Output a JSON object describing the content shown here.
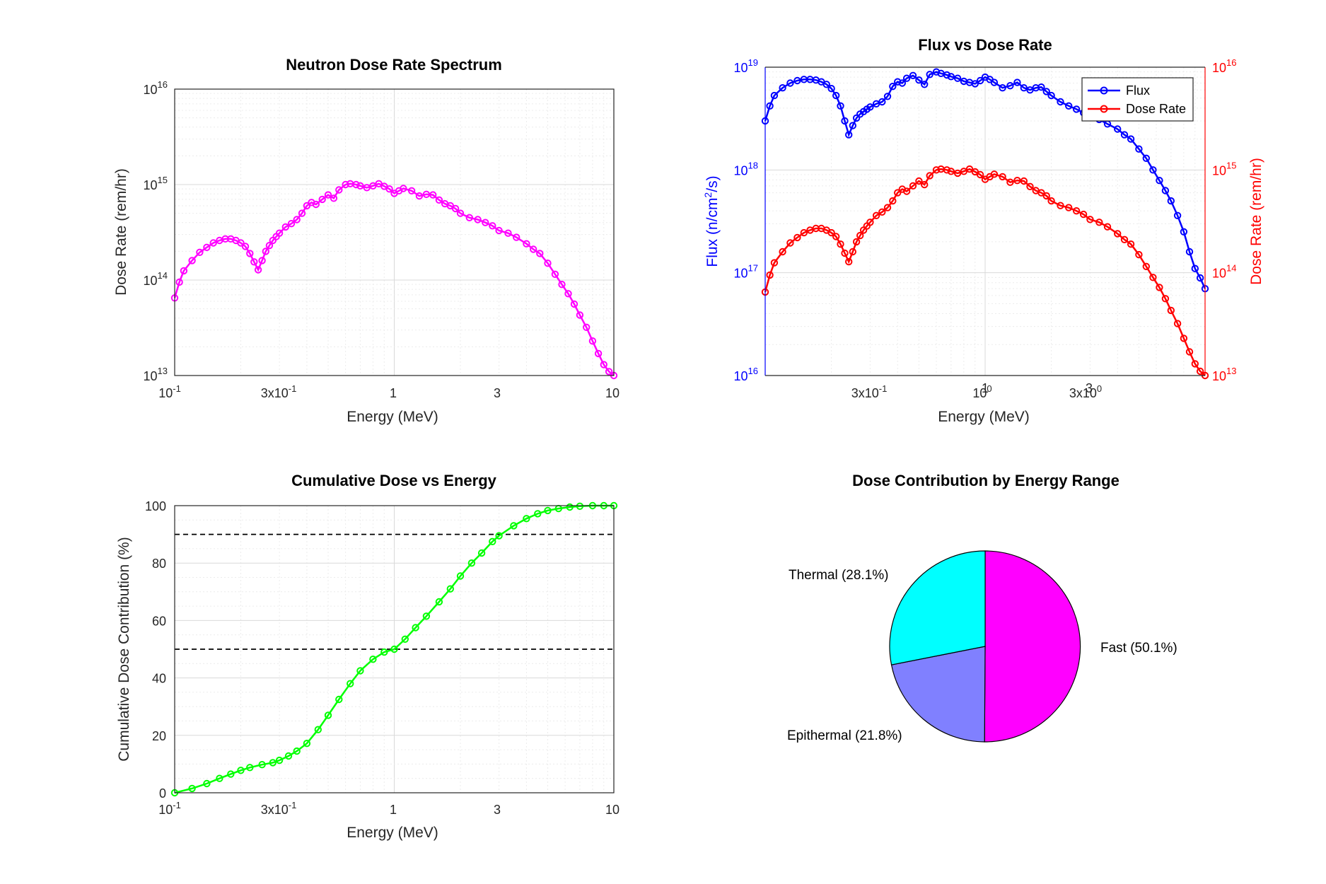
{
  "figure": {
    "background": "#ffffff"
  },
  "chart_data": [
    {
      "id": "dose",
      "type": "line",
      "title": "Neutron Dose Rate Spectrum",
      "xlabel": "Energy (MeV)",
      "ylabel": "Dose Rate (rem/hr)",
      "xscale": "log",
      "yscale": "log",
      "xlim": [
        0.1,
        10
      ],
      "ylim": [
        10000000000000.0,
        1e+16
      ],
      "grid": true,
      "minor_grid": true,
      "xtick_labels": [
        "10",
        "-1",
        "3x10",
        "-1",
        "1",
        "3",
        "10"
      ],
      "ytick_labels": [
        {
          "base": "10",
          "exp": "13"
        },
        {
          "base": "10",
          "exp": "14"
        },
        {
          "base": "10",
          "exp": "15"
        },
        {
          "base": "10",
          "exp": "16"
        }
      ],
      "series": [
        {
          "color": "#ff00ff",
          "marker": "circle",
          "x": [
            0.1,
            0.105,
            0.11,
            0.12,
            0.13,
            0.14,
            0.15,
            0.16,
            0.17,
            0.18,
            0.19,
            0.2,
            0.21,
            0.22,
            0.23,
            0.24,
            0.25,
            0.26,
            0.27,
            0.28,
            0.29,
            0.3,
            0.32,
            0.34,
            0.36,
            0.38,
            0.4,
            0.42,
            0.44,
            0.47,
            0.5,
            0.53,
            0.56,
            0.6,
            0.63,
            0.67,
            0.7,
            0.75,
            0.8,
            0.85,
            0.9,
            0.95,
            1.0,
            1.05,
            1.1,
            1.2,
            1.3,
            1.4,
            1.5,
            1.6,
            1.7,
            1.8,
            1.9,
            2.0,
            2.2,
            2.4,
            2.6,
            2.8,
            3.0,
            3.3,
            3.6,
            4.0,
            4.3,
            4.6,
            5.0,
            5.4,
            5.8,
            6.2,
            6.6,
            7.0,
            7.5,
            8.0,
            8.5,
            9.0,
            9.5,
            10
          ],
          "y": [
            65000000000000.0,
            95000000000000.0,
            125000000000000.0,
            160000000000000.0,
            195000000000000.0,
            220000000000000.0,
            245000000000000.0,
            260000000000000.0,
            270000000000000.0,
            270000000000000.0,
            260000000000000.0,
            245000000000000.0,
            225000000000000.0,
            190000000000000.0,
            155000000000000.0,
            128000000000000.0,
            160000000000000.0,
            200000000000000.0,
            230000000000000.0,
            260000000000000.0,
            285000000000000.0,
            310000000000000.0,
            360000000000000.0,
            390000000000000.0,
            430000000000000.0,
            500000000000000.0,
            600000000000000.0,
            650000000000000.0,
            620000000000000.0,
            700000000000000.0,
            780000000000000.0,
            720000000000000.0,
            880000000000000.0,
            1000000000000000.0,
            1020000000000000.0,
            1000000000000000.0,
            970000000000000.0,
            930000000000000.0,
            970000000000000.0,
            1020000000000000.0,
            960000000000000.0,
            900000000000000.0,
            810000000000000.0,
            860000000000000.0,
            910000000000000.0,
            860000000000000.0,
            760000000000000.0,
            790000000000000.0,
            780000000000000.0,
            690000000000000.0,
            630000000000000.0,
            600000000000000.0,
            560000000000000.0,
            500000000000000.0,
            450000000000000.0,
            430000000000000.0,
            400000000000000.0,
            370000000000000.0,
            330000000000000.0,
            310000000000000.0,
            280000000000000.0,
            240000000000000.0,
            210000000000000.0,
            190000000000000.0,
            150000000000000.0,
            115000000000000.0,
            90000000000000.0,
            72000000000000.0,
            56000000000000.0,
            43000000000000.0,
            32000000000000.0,
            23000000000000.0,
            17000000000000.0,
            13000000000000.0,
            11000000000000.0,
            10000000000000.0
          ]
        }
      ]
    },
    {
      "id": "flux",
      "type": "line",
      "title": "Flux vs Dose Rate",
      "xlabel": "Energy (MeV)",
      "xscale": "log",
      "xlim": [
        0.1,
        10
      ],
      "grid": true,
      "minor_grid": true,
      "xtick_labels": [
        "3x10",
        "-1",
        "10",
        "0",
        "1",
        "3x10",
        "0",
        "3"
      ],
      "left_axis": {
        "label": "Flux (n/cm",
        "label_sup": "2",
        "label_end": "/s)",
        "color": "#0000ff",
        "scale": "log",
        "lim": [
          1e+16,
          1e+19
        ],
        "tick_labels": [
          {
            "base": "10",
            "exp": "16"
          },
          {
            "base": "10",
            "exp": "17"
          },
          {
            "base": "10",
            "exp": "18"
          },
          {
            "base": "10",
            "exp": "19"
          }
        ]
      },
      "right_axis": {
        "label": "Dose Rate (rem/hr)",
        "color": "#ff0000",
        "scale": "log",
        "lim": [
          10000000000000.0,
          1e+16
        ],
        "tick_labels": [
          {
            "base": "10",
            "exp": "13"
          },
          {
            "base": "10",
            "exp": "14"
          },
          {
            "base": "10",
            "exp": "15"
          },
          {
            "base": "10",
            "exp": "16"
          }
        ]
      },
      "legend": {
        "placement": "top-right",
        "entries": [
          "Flux",
          "Dose Rate"
        ]
      },
      "series": [
        {
          "name": "Flux",
          "axis": "left",
          "color": "#0000ff",
          "marker": "circle",
          "x": [
            0.1,
            0.105,
            0.11,
            0.12,
            0.13,
            0.14,
            0.15,
            0.16,
            0.17,
            0.18,
            0.19,
            0.2,
            0.21,
            0.22,
            0.23,
            0.24,
            0.25,
            0.26,
            0.27,
            0.28,
            0.29,
            0.3,
            0.32,
            0.34,
            0.36,
            0.38,
            0.4,
            0.42,
            0.44,
            0.47,
            0.5,
            0.53,
            0.56,
            0.6,
            0.63,
            0.67,
            0.7,
            0.75,
            0.8,
            0.85,
            0.9,
            0.95,
            1.0,
            1.05,
            1.1,
            1.2,
            1.3,
            1.4,
            1.5,
            1.6,
            1.7,
            1.8,
            1.9,
            2.0,
            2.2,
            2.4,
            2.6,
            2.8,
            3.0,
            3.3,
            3.6,
            4.0,
            4.3,
            4.6,
            5.0,
            5.4,
            5.8,
            6.2,
            6.6,
            7.0,
            7.5,
            8.0,
            8.5,
            9.0,
            9.5,
            10
          ],
          "y": [
            3e+18,
            4.2e+18,
            5.3e+18,
            6.3e+18,
            7e+18,
            7.4e+18,
            7.6e+18,
            7.6e+18,
            7.5e+18,
            7.2e+18,
            6.8e+18,
            6.2e+18,
            5.3e+18,
            4.2e+18,
            3e+18,
            2.2e+18,
            2.7e+18,
            3.2e+18,
            3.5e+18,
            3.7e+18,
            3.9e+18,
            4.1e+18,
            4.4e+18,
            4.6e+18,
            5.2e+18,
            6.5e+18,
            7.2e+18,
            7e+18,
            7.8e+18,
            8.3e+18,
            7.5e+18,
            6.8e+18,
            8.5e+18,
            9e+18,
            8.7e+18,
            8.4e+18,
            8.1e+18,
            7.8e+18,
            7.3e+18,
            7.1e+18,
            6.9e+18,
            7.4e+18,
            8e+18,
            7.6e+18,
            7.1e+18,
            6.3e+18,
            6.6e+18,
            7.1e+18,
            6.3e+18,
            6e+18,
            6.3e+18,
            6.4e+18,
            5.8e+18,
            5.3e+18,
            4.6e+18,
            4.2e+18,
            3.9e+18,
            3.6e+18,
            3.3e+18,
            3.1e+18,
            2.8e+18,
            2.5e+18,
            2.2e+18,
            2e+18,
            1.6e+18,
            1.3e+18,
            1e+18,
            7.9e+17,
            6.3e+17,
            5e+17,
            3.6e+17,
            2.5e+17,
            1.6e+17,
            1.1e+17,
            8.9e+16,
            7e+16
          ]
        },
        {
          "name": "Dose Rate",
          "axis": "right",
          "color": "#ff0000",
          "marker": "circle",
          "x": [
            0.1,
            0.105,
            0.11,
            0.12,
            0.13,
            0.14,
            0.15,
            0.16,
            0.17,
            0.18,
            0.19,
            0.2,
            0.21,
            0.22,
            0.23,
            0.24,
            0.25,
            0.26,
            0.27,
            0.28,
            0.29,
            0.3,
            0.32,
            0.34,
            0.36,
            0.38,
            0.4,
            0.42,
            0.44,
            0.47,
            0.5,
            0.53,
            0.56,
            0.6,
            0.63,
            0.67,
            0.7,
            0.75,
            0.8,
            0.85,
            0.9,
            0.95,
            1.0,
            1.05,
            1.1,
            1.2,
            1.3,
            1.4,
            1.5,
            1.6,
            1.7,
            1.8,
            1.9,
            2.0,
            2.2,
            2.4,
            2.6,
            2.8,
            3.0,
            3.3,
            3.6,
            4.0,
            4.3,
            4.6,
            5.0,
            5.4,
            5.8,
            6.2,
            6.6,
            7.0,
            7.5,
            8.0,
            8.5,
            9.0,
            9.5,
            10
          ],
          "y": [
            65000000000000.0,
            95000000000000.0,
            125000000000000.0,
            160000000000000.0,
            195000000000000.0,
            220000000000000.0,
            245000000000000.0,
            260000000000000.0,
            270000000000000.0,
            270000000000000.0,
            260000000000000.0,
            245000000000000.0,
            225000000000000.0,
            190000000000000.0,
            155000000000000.0,
            128000000000000.0,
            160000000000000.0,
            200000000000000.0,
            230000000000000.0,
            260000000000000.0,
            285000000000000.0,
            310000000000000.0,
            360000000000000.0,
            390000000000000.0,
            430000000000000.0,
            500000000000000.0,
            600000000000000.0,
            650000000000000.0,
            620000000000000.0,
            700000000000000.0,
            780000000000000.0,
            720000000000000.0,
            880000000000000.0,
            1000000000000000.0,
            1020000000000000.0,
            1000000000000000.0,
            970000000000000.0,
            930000000000000.0,
            970000000000000.0,
            1020000000000000.0,
            960000000000000.0,
            900000000000000.0,
            810000000000000.0,
            860000000000000.0,
            910000000000000.0,
            860000000000000.0,
            760000000000000.0,
            790000000000000.0,
            780000000000000.0,
            690000000000000.0,
            630000000000000.0,
            600000000000000.0,
            560000000000000.0,
            500000000000000.0,
            450000000000000.0,
            430000000000000.0,
            400000000000000.0,
            370000000000000.0,
            330000000000000.0,
            310000000000000.0,
            280000000000000.0,
            240000000000000.0,
            210000000000000.0,
            190000000000000.0,
            150000000000000.0,
            115000000000000.0,
            90000000000000.0,
            72000000000000.0,
            56000000000000.0,
            43000000000000.0,
            32000000000000.0,
            23000000000000.0,
            17000000000000.0,
            13000000000000.0,
            11000000000000.0,
            10000000000000.0
          ]
        }
      ]
    },
    {
      "id": "cumulative",
      "type": "line",
      "title": "Cumulative Dose vs Energy",
      "xlabel": "Energy (MeV)",
      "ylabel": "Cumulative Dose Contribution (%)",
      "xscale": "log",
      "yscale": "linear",
      "xlim": [
        0.1,
        10
      ],
      "ylim": [
        0,
        100
      ],
      "grid": true,
      "minor_grid": true,
      "xtick_labels": [
        "10",
        "-1",
        "3x10",
        "-1",
        "1",
        "3",
        "10"
      ],
      "ytick_labels": [
        "0",
        "20",
        "40",
        "60",
        "80",
        "100"
      ],
      "reference_lines": [
        50,
        90
      ],
      "series": [
        {
          "color": "#00ff00",
          "marker": "circle",
          "x": [
            0.1,
            0.12,
            0.14,
            0.16,
            0.18,
            0.2,
            0.22,
            0.25,
            0.28,
            0.3,
            0.33,
            0.36,
            0.4,
            0.45,
            0.5,
            0.56,
            0.63,
            0.7,
            0.8,
            0.9,
            1.0,
            1.12,
            1.25,
            1.4,
            1.6,
            1.8,
            2.0,
            2.25,
            2.5,
            2.8,
            3.0,
            3.5,
            4.0,
            4.5,
            5.0,
            5.6,
            6.3,
            7.0,
            8.0,
            9.0,
            10
          ],
          "y": [
            0,
            1.5,
            3.2,
            5.0,
            6.5,
            7.8,
            8.8,
            9.8,
            10.5,
            11.3,
            12.8,
            14.5,
            17.2,
            22.0,
            27.0,
            32.5,
            38.0,
            42.5,
            46.5,
            49.0,
            50.0,
            53.5,
            57.5,
            61.5,
            66.5,
            71.0,
            75.5,
            80.0,
            83.5,
            87.5,
            89.5,
            93.0,
            95.5,
            97.2,
            98.3,
            99.0,
            99.5,
            99.8,
            100,
            100,
            100
          ]
        }
      ]
    },
    {
      "id": "pie",
      "type": "pie",
      "title": "Dose Contribution by Energy Range",
      "slices": [
        {
          "label": "Fast (50.1%)",
          "value": 50.1,
          "color": "#ff00ff"
        },
        {
          "label": "Epithermal (21.8%)",
          "value": 21.8,
          "color": "#8080ff"
        },
        {
          "label": "Thermal (28.1%)",
          "value": 28.1,
          "color": "#00ffff"
        }
      ]
    }
  ]
}
